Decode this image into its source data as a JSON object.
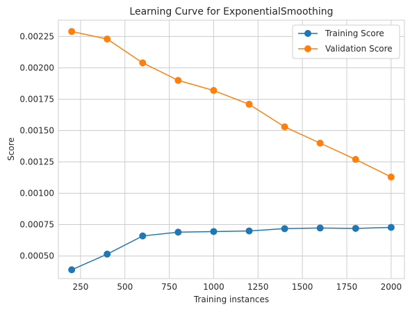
{
  "chart_data": {
    "type": "line",
    "title": "Learning Curve for ExponentialSmoothing",
    "xlabel": "Training instances",
    "ylabel": "Score",
    "xlim": [
      125,
      2075
    ],
    "ylim": [
      0.00032,
      0.00238
    ],
    "xticks": [
      250,
      500,
      750,
      1000,
      1250,
      1500,
      1750,
      2000
    ],
    "xtick_labels": [
      "250",
      "500",
      "750",
      "1000",
      "1250",
      "1500",
      "1750",
      "2000"
    ],
    "yticks": [
      0.0005,
      0.00075,
      0.001,
      0.00125,
      0.0015,
      0.00175,
      0.002,
      0.00225
    ],
    "ytick_labels": [
      "0.00050",
      "0.00075",
      "0.00100",
      "0.00125",
      "0.00150",
      "0.00175",
      "0.00200",
      "0.00225"
    ],
    "grid": true,
    "legend_position": "top-right",
    "x": [
      200,
      400,
      600,
      800,
      1000,
      1200,
      1400,
      1600,
      1800,
      2000
    ],
    "series": [
      {
        "name": "Training Score",
        "color": "#1f77b4",
        "values": [
          0.00039,
          0.000515,
          0.00066,
          0.00069,
          0.000695,
          0.0007,
          0.000718,
          0.000723,
          0.00072,
          0.000728
        ]
      },
      {
        "name": "Validation Score",
        "color": "#ff7f0e",
        "values": [
          0.00229,
          0.00223,
          0.00204,
          0.0019,
          0.00182,
          0.00171,
          0.00153,
          0.0014,
          0.00127,
          0.00113
        ]
      }
    ]
  }
}
